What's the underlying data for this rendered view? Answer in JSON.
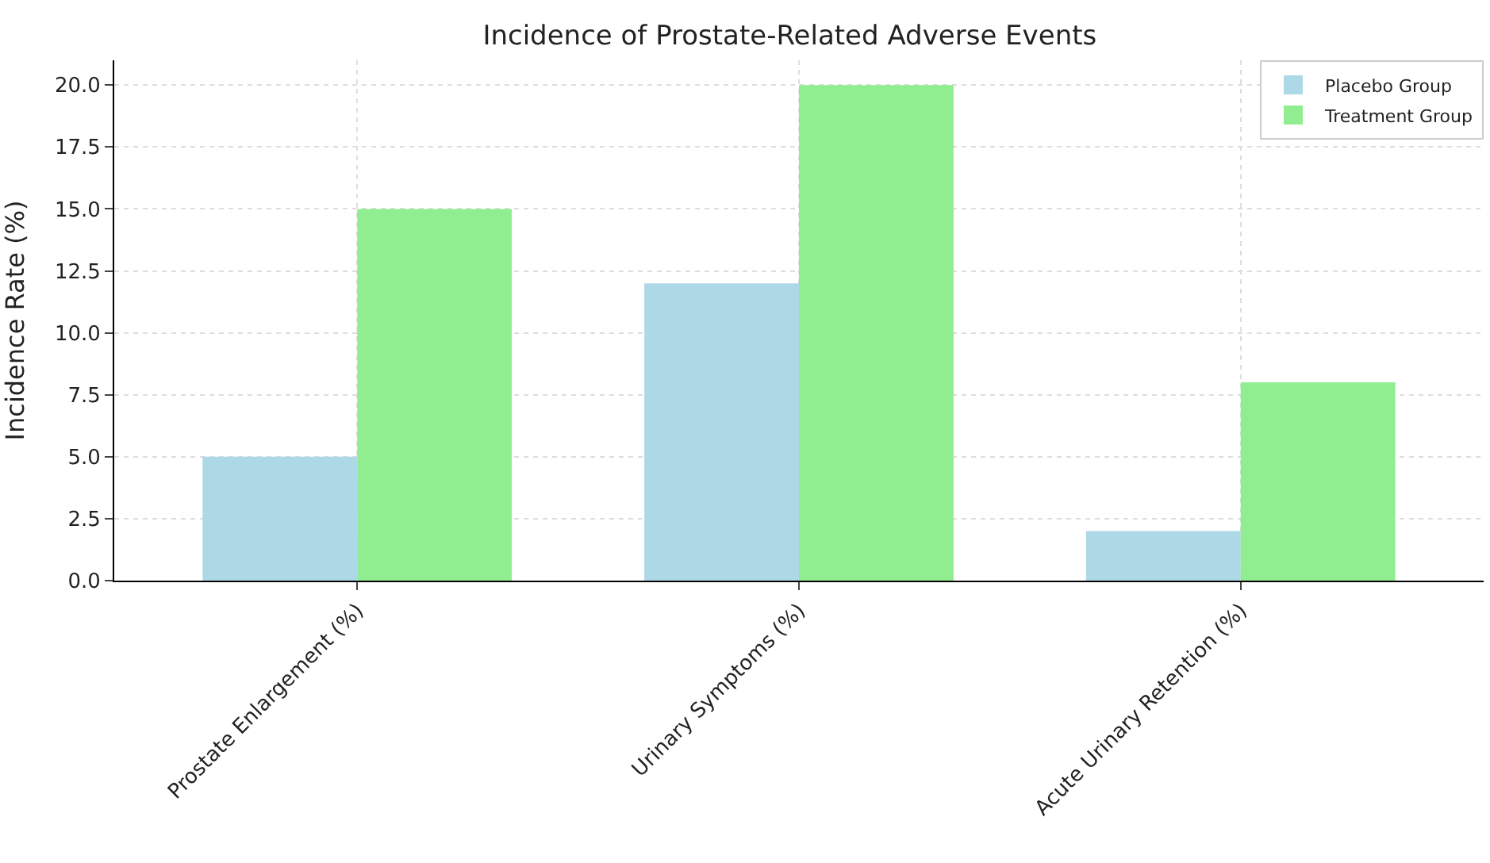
{
  "chart_data": {
    "type": "bar",
    "title": "Incidence of Prostate-Related Adverse Events",
    "ylabel": "Incidence Rate (%)",
    "categories": [
      "Prostate Enlargement (%)",
      "Urinary Symptoms (%)",
      "Acute Urinary Retention (%)"
    ],
    "series": [
      {
        "name": "Placebo Group",
        "color": "#add8e6",
        "values": [
          5,
          12,
          2
        ]
      },
      {
        "name": "Treatment Group",
        "color": "#90ee90",
        "values": [
          15,
          20,
          8
        ]
      }
    ],
    "ylim": [
      0,
      21
    ],
    "yticks": [
      {
        "value": 0,
        "label": "0.0"
      },
      {
        "value": 2.5,
        "label": "2.5"
      },
      {
        "value": 5,
        "label": "5.0"
      },
      {
        "value": 7.5,
        "label": "7.5"
      },
      {
        "value": 10,
        "label": "10.0"
      },
      {
        "value": 12.5,
        "label": "12.5"
      },
      {
        "value": 15,
        "label": "15.0"
      },
      {
        "value": 17.5,
        "label": "17.5"
      },
      {
        "value": 20,
        "label": "20.0"
      }
    ],
    "grid": true,
    "legend": "top right"
  }
}
